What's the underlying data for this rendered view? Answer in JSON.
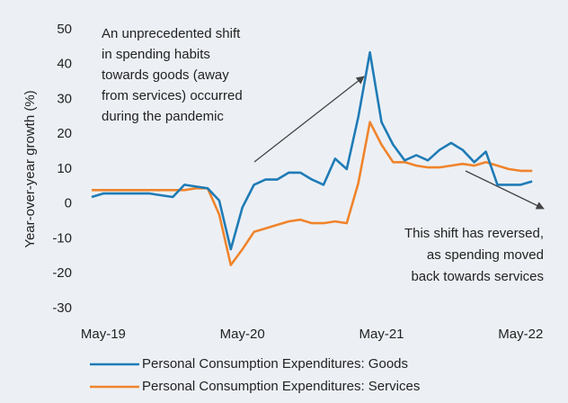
{
  "chart_data": {
    "type": "line",
    "y_axis_label": "Year-over-year growth (%)",
    "categories": [
      null,
      "May-19",
      null,
      null,
      null,
      null,
      null,
      null,
      null,
      null,
      null,
      null,
      null,
      "May-20",
      null,
      null,
      null,
      null,
      null,
      null,
      null,
      null,
      null,
      null,
      null,
      "May-21",
      null,
      null,
      null,
      null,
      null,
      null,
      null,
      null,
      null,
      null,
      null,
      "May-22",
      null
    ],
    "series": [
      {
        "name": "Personal Consumption Expenditures: Goods",
        "color": "#1f7bb6",
        "values": [
          2,
          3,
          3,
          3,
          3,
          3,
          2.5,
          2,
          5.5,
          5,
          4.5,
          1,
          -13,
          -1,
          5.5,
          7,
          7,
          9,
          9,
          7,
          5.5,
          13,
          10,
          25,
          43.5,
          23.5,
          17,
          12.5,
          14,
          12.5,
          15.5,
          17.5,
          15.5,
          12,
          15,
          5.5,
          5.5,
          5.5,
          6.5
        ]
      },
      {
        "name": "Personal Consumption Expenditures: Services",
        "color": "#f0842c",
        "values": [
          4,
          4,
          4,
          4,
          4,
          4,
          4,
          4,
          4,
          4.5,
          4.5,
          -3,
          -17.5,
          -13,
          -8,
          -7,
          -6,
          -5,
          -4.5,
          -5.5,
          -5.5,
          -5,
          -5.5,
          6,
          23.5,
          17,
          12,
          12,
          11,
          10.5,
          10.5,
          11,
          11.5,
          11,
          12,
          11,
          10,
          9.5,
          9.5
        ]
      }
    ],
    "ylim": [
      -30,
      50
    ],
    "yticks": [
      -30,
      -20,
      -10,
      0,
      10,
      20,
      30,
      40,
      50
    ],
    "annotations": [
      {
        "lines": [
          "An unprecedented shift",
          "in spending habits",
          "towards goods (away",
          "from services) occurred",
          "during the pandemic"
        ]
      },
      {
        "lines": [
          "This shift has reversed,",
          "as spending moved",
          "back towards services"
        ]
      }
    ],
    "legend": "bottom"
  }
}
